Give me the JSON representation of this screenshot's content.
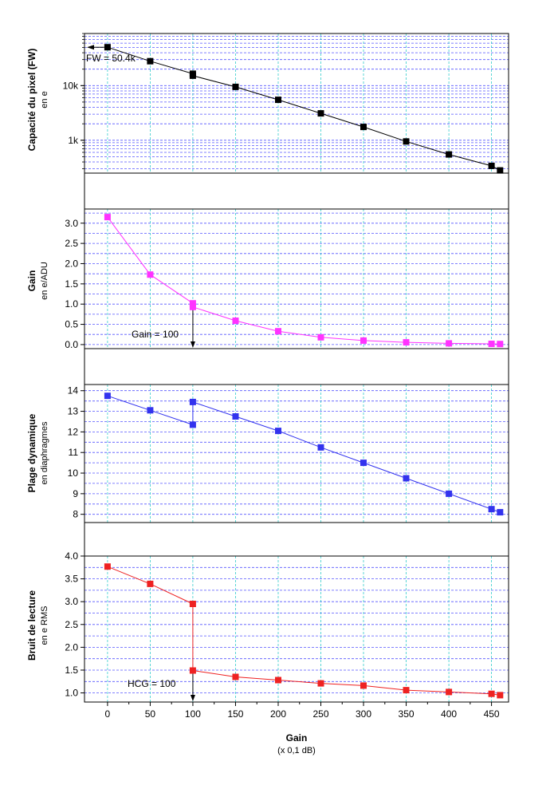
{
  "chart_data": [
    {
      "type": "line",
      "panel": 1,
      "ylabel": "Capacité du pixel (FW)",
      "ylabel2": "en e",
      "yscale": "log",
      "ylim": [
        250,
        90000
      ],
      "yticks": [
        1000,
        10000
      ],
      "ytick_labels": [
        "1k",
        "10k"
      ],
      "x": [
        0,
        50,
        100,
        100,
        150,
        200,
        250,
        300,
        350,
        400,
        450,
        460
      ],
      "y": [
        50400,
        28000,
        16500,
        15200,
        9500,
        5500,
        3100,
        1750,
        950,
        550,
        340,
        280
      ],
      "color": "#000000",
      "annotation": "FW = 50.4k"
    },
    {
      "type": "line",
      "panel": 2,
      "ylabel": "Gain",
      "ylabel2": "en e/ADU",
      "ylim": [
        -0.1,
        3.35
      ],
      "yticks": [
        0.0,
        0.5,
        1.0,
        1.5,
        2.0,
        2.5,
        3.0
      ],
      "ytick_labels": [
        "0.0",
        "0.5",
        "1.0",
        "1.5",
        "2.0",
        "2.5",
        "3.0"
      ],
      "x": [
        0,
        50,
        100,
        100,
        150,
        200,
        250,
        300,
        350,
        400,
        450,
        460
      ],
      "y": [
        3.15,
        1.73,
        1.02,
        0.93,
        0.59,
        0.33,
        0.18,
        0.1,
        0.055,
        0.03,
        0.018,
        0.015
      ],
      "color": "#ff33ff",
      "annotation": "Gain = 100"
    },
    {
      "type": "line",
      "panel": 3,
      "ylabel": "Plage dynamique",
      "ylabel2": "en diaphragmes",
      "ylim": [
        7.6,
        14.3
      ],
      "yticks": [
        8,
        9,
        10,
        11,
        12,
        13,
        14
      ],
      "ytick_labels": [
        "8",
        "9",
        "10",
        "11",
        "12",
        "13",
        "14"
      ],
      "x": [
        0,
        50,
        100,
        100,
        150,
        200,
        250,
        300,
        350,
        400,
        450,
        460
      ],
      "y": [
        13.75,
        13.05,
        12.35,
        13.45,
        12.75,
        12.05,
        11.25,
        10.5,
        9.75,
        9.0,
        8.25,
        8.1
      ],
      "color": "#3333ee"
    },
    {
      "type": "line",
      "panel": 4,
      "ylabel": "Bruit de lecture",
      "ylabel2": "en e RMS",
      "ylim": [
        0.8,
        4.0
      ],
      "yticks": [
        1.0,
        1.5,
        2.0,
        2.5,
        3.0,
        3.5,
        4.0
      ],
      "ytick_labels": [
        "1.0",
        "1.5",
        "2.0",
        "2.5",
        "3.0",
        "3.5",
        "4.0"
      ],
      "x": [
        0,
        50,
        100,
        100,
        150,
        200,
        250,
        300,
        350,
        400,
        450,
        460
      ],
      "y": [
        3.77,
        3.39,
        2.95,
        1.49,
        1.35,
        1.28,
        1.21,
        1.16,
        1.06,
        1.02,
        0.98,
        0.95
      ],
      "color": "#ee2222",
      "annotation": "HCG = 100"
    }
  ],
  "xaxis": {
    "label": "Gain",
    "sublabel": "(x 0,1 dB)",
    "xlim": [
      -27,
      470
    ],
    "ticks": [
      0,
      50,
      100,
      150,
      200,
      250,
      300,
      350,
      400,
      450
    ],
    "tick_labels": [
      "0",
      "50",
      "100",
      "150",
      "200",
      "250",
      "300",
      "350",
      "400",
      "450"
    ]
  },
  "style": {
    "grid_color": "#5555ff",
    "vgrid_color": "#33cccc",
    "axis_color": "#000000"
  }
}
